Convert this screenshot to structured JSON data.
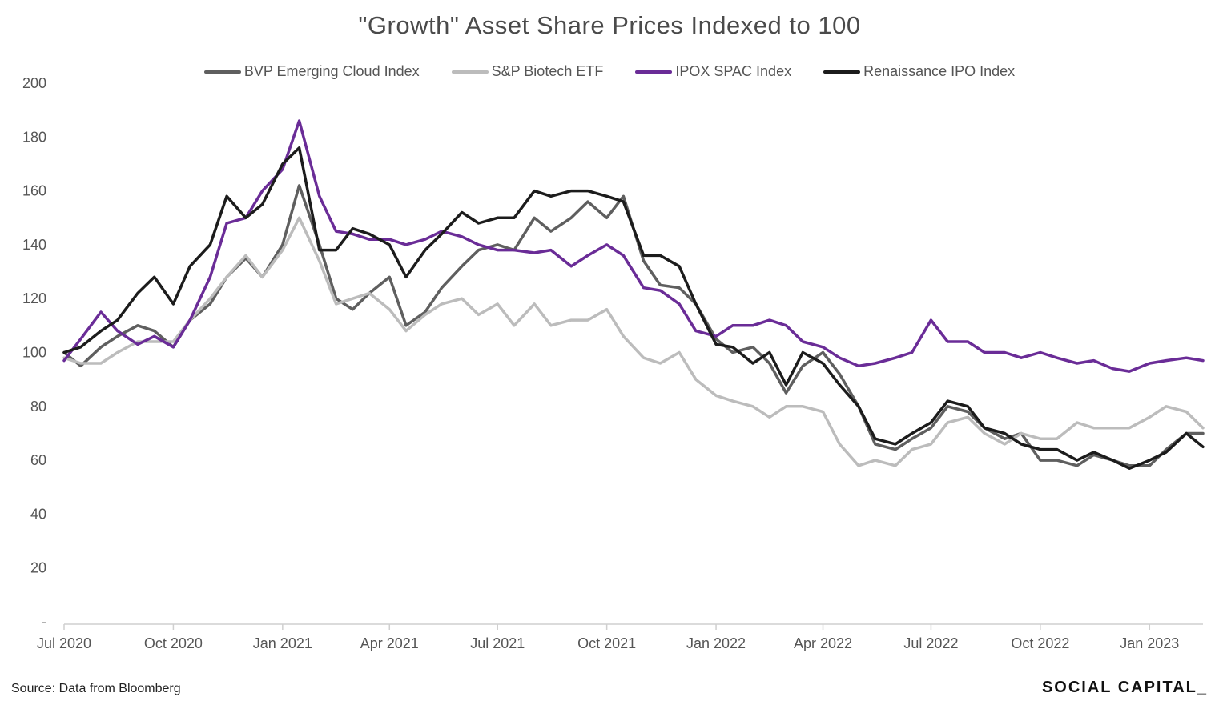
{
  "chart_data": {
    "type": "line",
    "title": "\"Growth\" Asset Share Prices Indexed to 100",
    "xlabel": "",
    "ylabel": "",
    "ylim": [
      0,
      200
    ],
    "yticks": [
      {
        "value": 0,
        "label": "-"
      },
      {
        "value": 20,
        "label": "20"
      },
      {
        "value": 40,
        "label": "40"
      },
      {
        "value": 60,
        "label": "60"
      },
      {
        "value": 80,
        "label": "80"
      },
      {
        "value": 100,
        "label": "100"
      },
      {
        "value": 120,
        "label": "120"
      },
      {
        "value": 140,
        "label": "140"
      },
      {
        "value": 160,
        "label": "160"
      },
      {
        "value": 180,
        "label": "180"
      },
      {
        "value": 200,
        "label": "200"
      }
    ],
    "xlim": [
      "2020-07-01",
      "2023-02-15"
    ],
    "xticks": [
      {
        "date": "2020-07-01",
        "label": "Jul 2020"
      },
      {
        "date": "2020-10-01",
        "label": "Oct 2020"
      },
      {
        "date": "2021-01-01",
        "label": "Jan 2021"
      },
      {
        "date": "2021-04-01",
        "label": "Apr 2021"
      },
      {
        "date": "2021-07-01",
        "label": "Jul 2021"
      },
      {
        "date": "2021-10-01",
        "label": "Oct 2021"
      },
      {
        "date": "2022-01-01",
        "label": "Jan 2022"
      },
      {
        "date": "2022-04-01",
        "label": "Apr 2022"
      },
      {
        "date": "2022-07-01",
        "label": "Jul 2022"
      },
      {
        "date": "2022-10-01",
        "label": "Oct 2022"
      },
      {
        "date": "2023-01-01",
        "label": "Jan 2023"
      }
    ],
    "grid": false,
    "legend": "top",
    "x": [
      "2020-07-01",
      "2020-07-15",
      "2020-08-01",
      "2020-08-15",
      "2020-09-01",
      "2020-09-15",
      "2020-10-01",
      "2020-10-15",
      "2020-11-01",
      "2020-11-15",
      "2020-12-01",
      "2020-12-15",
      "2021-01-01",
      "2021-01-15",
      "2021-02-01",
      "2021-02-15",
      "2021-03-01",
      "2021-03-15",
      "2021-04-01",
      "2021-04-15",
      "2021-05-01",
      "2021-05-15",
      "2021-06-01",
      "2021-06-15",
      "2021-07-01",
      "2021-07-15",
      "2021-08-01",
      "2021-08-15",
      "2021-09-01",
      "2021-09-15",
      "2021-10-01",
      "2021-10-15",
      "2021-11-01",
      "2021-11-15",
      "2021-12-01",
      "2021-12-15",
      "2022-01-01",
      "2022-01-15",
      "2022-02-01",
      "2022-02-15",
      "2022-03-01",
      "2022-03-15",
      "2022-04-01",
      "2022-04-15",
      "2022-05-01",
      "2022-05-15",
      "2022-06-01",
      "2022-06-15",
      "2022-07-01",
      "2022-07-15",
      "2022-08-01",
      "2022-08-15",
      "2022-09-01",
      "2022-09-15",
      "2022-10-01",
      "2022-10-15",
      "2022-11-01",
      "2022-11-15",
      "2022-12-01",
      "2022-12-15",
      "2023-01-01",
      "2023-01-15",
      "2023-02-01",
      "2023-02-15"
    ],
    "series": [
      {
        "name": "BVP Emerging Cloud Index",
        "color": "#5f5f5f",
        "values": [
          100,
          95,
          102,
          106,
          110,
          108,
          102,
          112,
          118,
          128,
          135,
          128,
          140,
          162,
          140,
          120,
          116,
          122,
          128,
          110,
          115,
          124,
          132,
          138,
          140,
          138,
          150,
          145,
          150,
          156,
          150,
          158,
          134,
          125,
          124,
          118,
          105,
          100,
          102,
          96,
          85,
          95,
          100,
          92,
          80,
          66,
          64,
          68,
          72,
          80,
          78,
          72,
          68,
          70,
          60,
          60,
          58,
          62,
          60,
          58,
          58,
          64,
          70,
          70
        ]
      },
      {
        "name": "S&P Biotech ETF",
        "color": "#bcbcbc",
        "values": [
          98,
          96,
          96,
          100,
          104,
          104,
          104,
          112,
          120,
          128,
          136,
          128,
          138,
          150,
          134,
          118,
          120,
          122,
          116,
          108,
          114,
          118,
          120,
          114,
          118,
          110,
          118,
          110,
          112,
          112,
          116,
          106,
          98,
          96,
          100,
          90,
          84,
          82,
          80,
          76,
          80,
          80,
          78,
          66,
          58,
          60,
          58,
          64,
          66,
          74,
          76,
          70,
          66,
          70,
          68,
          68,
          74,
          72,
          72,
          72,
          76,
          80,
          78,
          72
        ]
      },
      {
        "name": "IPOX SPAC Index",
        "color": "#6a2c97",
        "values": [
          97,
          105,
          115,
          108,
          103,
          106,
          102,
          112,
          128,
          148,
          150,
          160,
          168,
          186,
          158,
          145,
          144,
          142,
          142,
          140,
          142,
          145,
          143,
          140,
          138,
          138,
          137,
          138,
          132,
          136,
          140,
          136,
          124,
          123,
          118,
          108,
          106,
          110,
          110,
          112,
          110,
          104,
          102,
          98,
          95,
          96,
          98,
          100,
          112,
          104,
          104,
          100,
          100,
          98,
          100,
          98,
          96,
          97,
          94,
          93,
          96,
          97,
          98,
          97
        ]
      },
      {
        "name": "Renaissance IPO Index",
        "color": "#1c1c1c",
        "values": [
          100,
          102,
          108,
          112,
          122,
          128,
          118,
          132,
          140,
          158,
          150,
          155,
          170,
          176,
          138,
          138,
          146,
          144,
          140,
          128,
          138,
          144,
          152,
          148,
          150,
          150,
          160,
          158,
          160,
          160,
          158,
          156,
          136,
          136,
          132,
          118,
          103,
          102,
          96,
          100,
          88,
          100,
          96,
          88,
          80,
          68,
          66,
          70,
          74,
          82,
          80,
          72,
          70,
          66,
          64,
          64,
          60,
          63,
          60,
          57,
          60,
          63,
          70,
          65
        ]
      }
    ]
  },
  "footer": {
    "source": "Source: Data from Bloomberg",
    "brand": "SOCIAL CAPITAL_"
  }
}
